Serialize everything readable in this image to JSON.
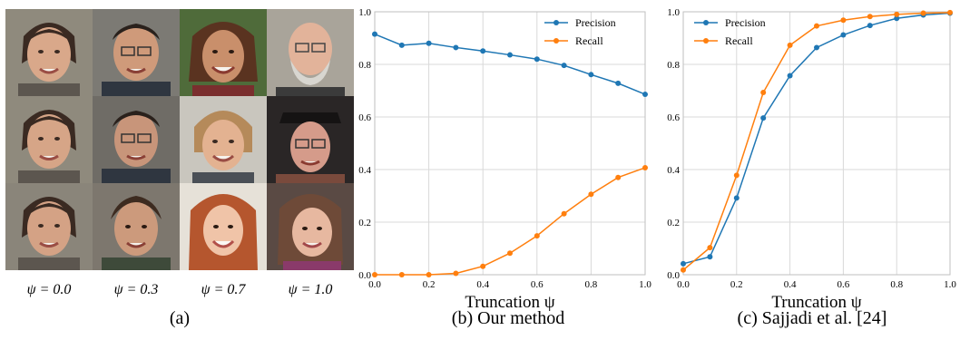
{
  "panel_a": {
    "caption": "(a)",
    "columns": [
      {
        "psi_label": "ψ = 0.0"
      },
      {
        "psi_label": "ψ = 0.3"
      },
      {
        "psi_label": "ψ = 0.7"
      },
      {
        "psi_label": "ψ = 1.0"
      }
    ]
  },
  "colors": {
    "precision": "#1f77b4",
    "recall": "#ff7f0e",
    "grid": "#d9d9d9"
  },
  "chart_data": [
    {
      "type": "line",
      "caption": "(b) Our method",
      "xlabel": "Truncation ψ",
      "ylabel": "",
      "xlim": [
        0,
        1
      ],
      "ylim": [
        0,
        1
      ],
      "xticks": [
        "0.0",
        "0.2",
        "0.4",
        "0.6",
        "0.8",
        "1.0"
      ],
      "yticks": [
        "0.0",
        "0.2",
        "0.4",
        "0.6",
        "0.8",
        "1.0"
      ],
      "grid": true,
      "legend_position": "top-right",
      "x": [
        0.0,
        0.1,
        0.2,
        0.3,
        0.4,
        0.5,
        0.6,
        0.7,
        0.8,
        0.9,
        1.0
      ],
      "series": [
        {
          "name": "Precision",
          "values": [
            0.915,
            0.873,
            0.88,
            0.864,
            0.851,
            0.836,
            0.82,
            0.796,
            0.761,
            0.728,
            0.686
          ]
        },
        {
          "name": "Recall",
          "values": [
            0.0,
            0.0,
            0.0,
            0.005,
            0.032,
            0.082,
            0.148,
            0.232,
            0.306,
            0.37,
            0.407
          ]
        }
      ]
    },
    {
      "type": "line",
      "caption": "(c) Sajjadi et al. [24]",
      "xlabel": "Truncation ψ",
      "ylabel": "",
      "xlim": [
        0,
        1
      ],
      "ylim": [
        0,
        1
      ],
      "xticks": [
        "0.0",
        "0.2",
        "0.4",
        "0.6",
        "0.8",
        "1.0"
      ],
      "yticks": [
        "0.0",
        "0.2",
        "0.4",
        "0.6",
        "0.8",
        "1.0"
      ],
      "grid": true,
      "legend_position": "top-left",
      "x": [
        0.0,
        0.1,
        0.2,
        0.3,
        0.4,
        0.5,
        0.6,
        0.7,
        0.8,
        0.9,
        1.0
      ],
      "series": [
        {
          "name": "Precision",
          "values": [
            0.042,
            0.068,
            0.292,
            0.596,
            0.757,
            0.864,
            0.912,
            0.948,
            0.975,
            0.988,
            0.995
          ]
        },
        {
          "name": "Recall",
          "values": [
            0.018,
            0.103,
            0.378,
            0.693,
            0.873,
            0.946,
            0.968,
            0.982,
            0.99,
            0.995,
            0.997
          ]
        }
      ]
    }
  ]
}
